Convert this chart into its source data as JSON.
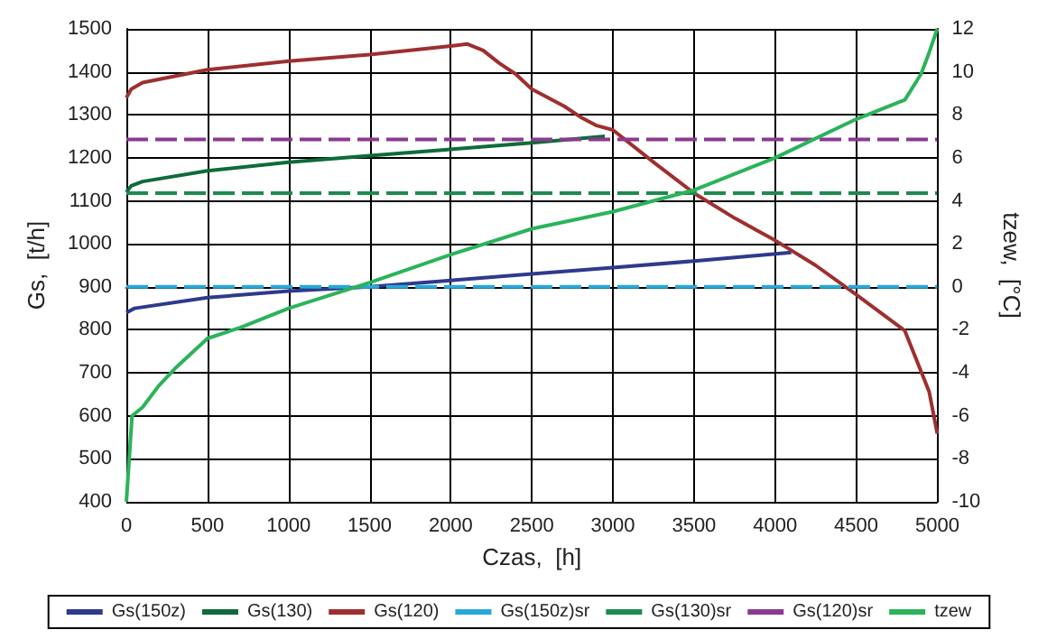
{
  "chart_data": {
    "type": "line",
    "xlabel": "Czas,  [h]",
    "ylabel": "Gs,  [t/h]",
    "y2label": "tzew,  [°C]",
    "xlim": [
      0,
      5000
    ],
    "xticks": [
      0,
      500,
      1000,
      1500,
      2000,
      2500,
      3000,
      3500,
      4000,
      4500,
      5000
    ],
    "ylim": [
      400,
      1500
    ],
    "yticks": [
      400,
      500,
      600,
      700,
      800,
      900,
      1000,
      1100,
      1200,
      1300,
      1400,
      1500
    ],
    "y2lim": [
      -10,
      12
    ],
    "y2ticks": [
      -10,
      -8,
      -6,
      -4,
      -2,
      0,
      2,
      4,
      6,
      8,
      10,
      12
    ],
    "grid": true,
    "legend": "bottom",
    "marker": "none",
    "series": [
      {
        "name": "Gs(150z)",
        "color": "#2e3a8c",
        "x": [
          0,
          50,
          500,
          1000,
          1500,
          2000,
          2500,
          3000,
          3500,
          4100
        ],
        "values": [
          840,
          850,
          875,
          890,
          900,
          915,
          930,
          945,
          960,
          980
        ]
      },
      {
        "name": "Gs(130)",
        "color": "#0f6b3a",
        "x": [
          0,
          30,
          100,
          500,
          1000,
          1500,
          2000,
          2500,
          2950
        ],
        "values": [
          1120,
          1135,
          1145,
          1170,
          1190,
          1205,
          1220,
          1235,
          1250
        ]
      },
      {
        "name": "Gs(120)",
        "color": "#9e2f2f",
        "x": [
          0,
          30,
          100,
          500,
          1000,
          1500,
          2000,
          2100,
          2200,
          2300,
          2400,
          2500,
          2600,
          2700,
          2800,
          2900,
          3000,
          3250,
          3500,
          3750,
          4000,
          4250,
          4500,
          4800,
          4950,
          5000
        ],
        "values": [
          1340,
          1360,
          1375,
          1405,
          1425,
          1440,
          1460,
          1465,
          1450,
          1420,
          1395,
          1360,
          1340,
          1320,
          1295,
          1275,
          1265,
          1190,
          1118,
          1060,
          1008,
          950,
          882,
          798,
          656,
          559
        ]
      },
      {
        "name": "Gs(150z)sr",
        "color": "#29a8d8",
        "line_style": "dashed",
        "x": [
          0,
          5000
        ],
        "values": [
          900,
          900
        ]
      },
      {
        "name": "Gs(130)sr",
        "color": "#1e8a4e",
        "line_style": "dashed",
        "x": [
          0,
          5000
        ],
        "values": [
          1118,
          1118
        ]
      },
      {
        "name": "Gs(120)sr",
        "color": "#8b3a8f",
        "line_style": "dashed",
        "x": [
          0,
          5000
        ],
        "values": [
          1243,
          1243
        ]
      },
      {
        "name": "tzew",
        "color": "#2bb35a",
        "axis": "y2",
        "x": [
          0,
          35,
          100,
          200,
          300,
          500,
          700,
          1000,
          1500,
          2000,
          2500,
          3000,
          3500,
          4000,
          4500,
          4800,
          4900,
          4950,
          5000
        ],
        "values": [
          -10,
          -6,
          -5.6,
          -4.6,
          -3.8,
          -2.4,
          -1.9,
          -1,
          0.2,
          1.5,
          2.7,
          3.5,
          4.5,
          6,
          7.8,
          8.7,
          9.9,
          10.9,
          12
        ]
      }
    ]
  }
}
